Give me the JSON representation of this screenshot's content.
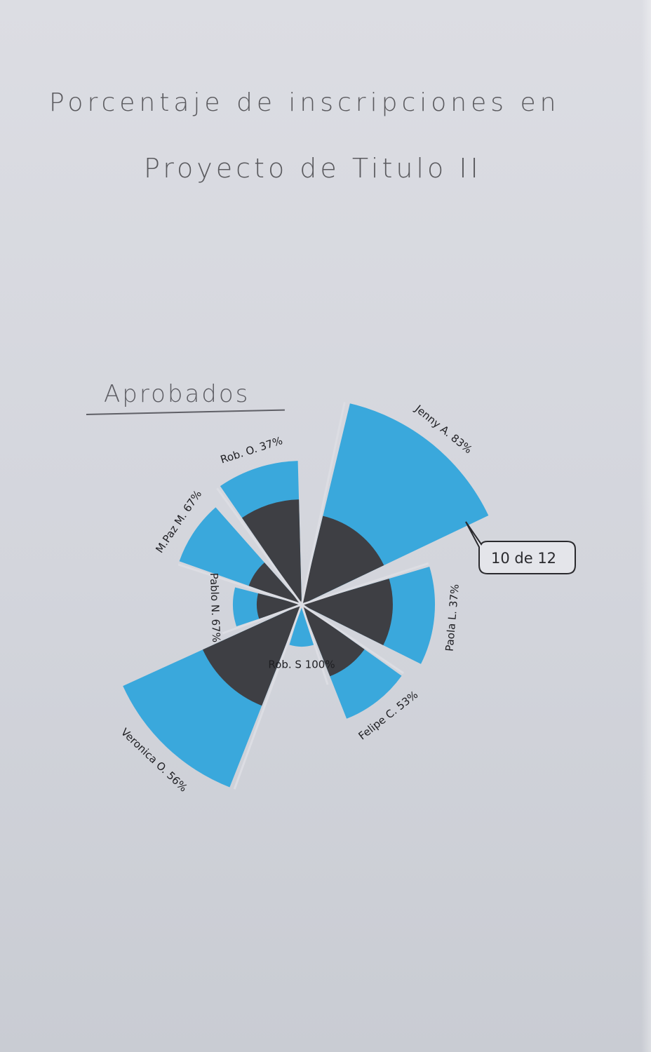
{
  "title": {
    "line1": "Porcentaje de inscripciones en",
    "line2": "Proyecto de Titulo II"
  },
  "section_label": "Aprobados",
  "callout": "10 de 12",
  "colors": {
    "outer_fill": "#3aa8dc",
    "inner_fill": "#3e3f44",
    "paper": "#d8dae0",
    "ink": "#222226"
  },
  "chart_data": {
    "type": "polar-area",
    "title": "Porcentaje de inscripciones en Proyecto de Titulo II",
    "subtitle": "Aprobados",
    "categories": [
      "Jenny A.",
      "Paola L.",
      "Felipe C.",
      "Rob. S",
      "Veronica O.",
      "Pablo N.",
      "M.Paz M.",
      "Rob. O."
    ],
    "values": [
      83,
      37,
      53,
      100,
      56,
      67,
      67,
      37
    ],
    "labels": [
      "Jenny A. 83%",
      "Paola L. 37%",
      "Felipe C. 53%",
      "Rob. S 100%",
      "Veronica O. 56%",
      "Pablo N. 67%",
      "M.Paz M. 67%",
      "Rob. O. 37%"
    ],
    "annotation": "10 de 12",
    "series": [
      {
        "values": [
          83,
          37,
          53,
          100,
          56,
          67,
          67,
          37
        ]
      }
    ]
  }
}
